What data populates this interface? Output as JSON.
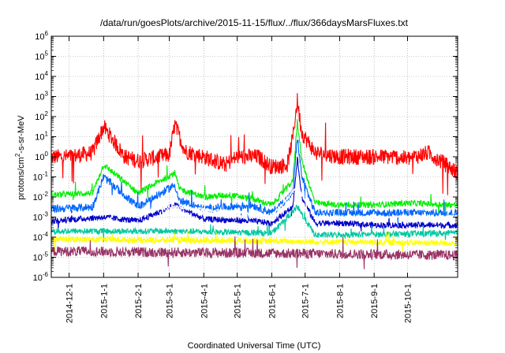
{
  "chart_data": {
    "type": "line",
    "title": "/data/run/goesPlots/archive/2015-11-15/flux/../flux/366daysMarsFluxes.txt",
    "xlabel": "Coordinated Universal Time (UTC)",
    "ylabel_prefix": "protons/cm",
    "ylabel_sup": "2",
    "ylabel_suffix": "-s-sr-MeV",
    "y_scale": "log",
    "ylim_exponents": [
      -6,
      6
    ],
    "y_tick_exponents": [
      -6,
      -5,
      -4,
      -3,
      -2,
      -1,
      0,
      1,
      2,
      3,
      4,
      5,
      6
    ],
    "xlim": [
      "2014-11-15",
      "2015-11-15"
    ],
    "x_ticks": [
      "2014-12-1",
      "2015-1-1",
      "2015-2-1",
      "2015-3-1",
      "2015-4-1",
      "2015-5-1",
      "2015-6-1",
      "2015-7-1",
      "2015-8-1",
      "2015-9-1",
      "2015-10-1"
    ],
    "grid": true,
    "legend": "none",
    "series": [
      {
        "color": "#ff0000",
        "base_exp": -0.1,
        "noise": 0.4,
        "x": [
          "2014-11-15",
          "2014-12-1",
          "2014-12-22",
          "2015-1-1",
          "2015-1-20",
          "2015-2-1",
          "2015-2-20",
          "2015-3-1",
          "2015-3-6",
          "2015-3-15",
          "2015-4-1",
          "2015-4-20",
          "2015-5-1",
          "2015-5-20",
          "2015-6-1",
          "2015-6-15",
          "2015-6-20",
          "2015-6-24",
          "2015-6-28",
          "2015-7-10",
          "2015-8-1",
          "2015-9-1",
          "2015-9-20",
          "2015-10-1",
          "2015-10-20",
          "2015-11-15"
        ],
        "y_exp": [
          0.0,
          0.0,
          0.2,
          1.5,
          0.0,
          -0.2,
          0.0,
          0.1,
          1.6,
          0.3,
          0.0,
          -0.4,
          0.0,
          0.0,
          -0.5,
          -0.4,
          1.0,
          2.8,
          1.2,
          0.2,
          0.0,
          0.0,
          0.0,
          -0.1,
          0.2,
          -0.8
        ]
      },
      {
        "color": "#00ee00",
        "base_exp": -2.0,
        "noise": 0.15,
        "x": [
          "2014-11-15",
          "2014-12-22",
          "2015-1-1",
          "2015-2-1",
          "2015-3-6",
          "2015-3-10",
          "2015-4-1",
          "2015-4-25",
          "2015-5-15",
          "2015-6-1",
          "2015-6-20",
          "2015-6-24",
          "2015-6-28",
          "2015-7-10",
          "2015-8-1",
          "2015-9-1",
          "2015-10-1",
          "2015-11-15"
        ],
        "y_exp": [
          -1.9,
          -1.8,
          -0.4,
          -1.8,
          -0.8,
          -1.6,
          -2.0,
          -1.9,
          -2.1,
          -2.4,
          -1.2,
          1.8,
          -0.2,
          -2.3,
          -2.4,
          -2.4,
          -2.3,
          -2.4
        ]
      },
      {
        "color": "#0066ff",
        "base_exp": -2.6,
        "noise": 0.2,
        "x": [
          "2014-11-15",
          "2014-12-22",
          "2015-1-1",
          "2015-2-1",
          "2015-3-6",
          "2015-3-10",
          "2015-4-1",
          "2015-5-15",
          "2015-6-1",
          "2015-6-20",
          "2015-6-24",
          "2015-6-28",
          "2015-7-10",
          "2015-8-1",
          "2015-9-1",
          "2015-10-1",
          "2015-11-15"
        ],
        "y_exp": [
          -2.6,
          -2.5,
          -1.0,
          -2.5,
          -1.4,
          -2.2,
          -2.6,
          -2.4,
          -2.8,
          -1.8,
          1.0,
          -1.0,
          -2.8,
          -2.8,
          -2.8,
          -2.8,
          -2.8
        ]
      },
      {
        "color": "#0000cc",
        "base_exp": -3.3,
        "noise": 0.15,
        "x": [
          "2014-11-15",
          "2015-1-1",
          "2015-2-1",
          "2015-3-6",
          "2015-4-1",
          "2015-5-15",
          "2015-6-1",
          "2015-6-20",
          "2015-6-24",
          "2015-6-28",
          "2015-7-10",
          "2015-8-1",
          "2015-9-1",
          "2015-10-1",
          "2015-11-15"
        ],
        "y_exp": [
          -3.2,
          -3.0,
          -3.2,
          -2.4,
          -3.1,
          -3.2,
          -3.3,
          -2.5,
          0.0,
          -2.0,
          -3.3,
          -3.3,
          -3.4,
          -3.4,
          -3.4
        ]
      },
      {
        "color": "#ffffff",
        "base_exp": -2.9,
        "noise": 0.1,
        "x": [
          "2014-11-15",
          "2015-1-1",
          "2015-3-6",
          "2015-6-1",
          "2015-6-24",
          "2015-7-10",
          "2015-11-15"
        ],
        "y_exp": [
          -2.9,
          -2.8,
          -2.5,
          -2.9,
          -1.5,
          -3.0,
          -3.0
        ]
      },
      {
        "color": "#00c8a0",
        "base_exp": -3.8,
        "noise": 0.15,
        "x": [
          "2014-11-15",
          "2015-3-1",
          "2015-6-1",
          "2015-6-24",
          "2015-7-10",
          "2015-11-15"
        ],
        "y_exp": [
          -3.7,
          -3.7,
          -3.8,
          -2.5,
          -3.9,
          -3.8
        ]
      },
      {
        "color": "#ffff00",
        "base_exp": -4.2,
        "noise": 0.15,
        "x": [
          "2014-11-15",
          "2015-6-1",
          "2015-11-15"
        ],
        "y_exp": [
          -4.1,
          -4.2,
          -4.3
        ]
      },
      {
        "color": "#993366",
        "base_exp": -4.8,
        "noise": 0.25,
        "x": [
          "2014-11-15",
          "2015-6-1",
          "2015-11-15"
        ],
        "y_exp": [
          -4.7,
          -4.8,
          -4.9
        ]
      }
    ]
  }
}
